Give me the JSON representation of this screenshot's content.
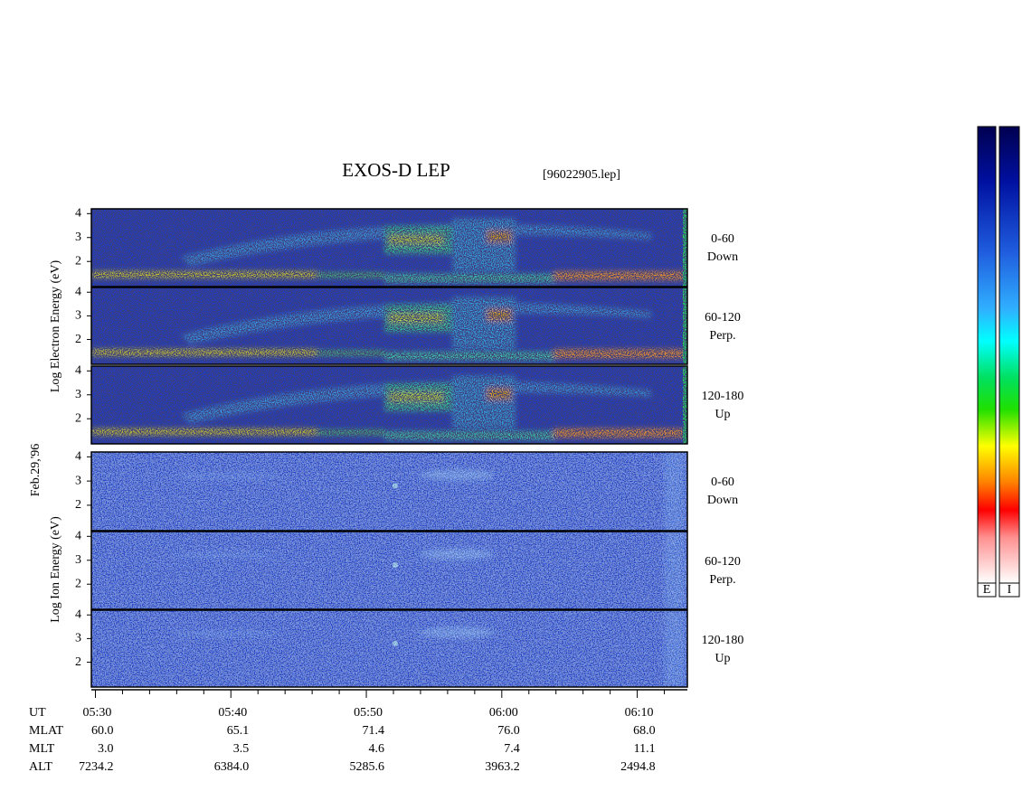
{
  "chart_data": {
    "type": "spectrogram",
    "title": "EXOS-D LEP",
    "file_label": "[96022905.lep]",
    "date_label": "Feb.29,'96",
    "groups": [
      {
        "species": "electron",
        "y_label": "Log Electron Energy (eV)",
        "panels": [
          {
            "label": "0-60",
            "sublabel": "Down"
          },
          {
            "label": "60-120",
            "sublabel": "Perp."
          },
          {
            "label": "120-180",
            "sublabel": "Up"
          }
        ]
      },
      {
        "species": "ion",
        "y_label": "Log Ion Energy (eV)",
        "panels": [
          {
            "label": "0-60",
            "sublabel": "Down"
          },
          {
            "label": "60-120",
            "sublabel": "Perp."
          },
          {
            "label": "120-180",
            "sublabel": "Up"
          }
        ]
      }
    ],
    "ylim": [
      0.95,
      4.2
    ],
    "yticks": [
      2,
      3,
      4
    ],
    "xlim": [
      329.7,
      373.7
    ],
    "xticks": [
      {
        "value": 330,
        "label": "05:30"
      },
      {
        "value": 340,
        "label": "05:40"
      },
      {
        "value": 350,
        "label": "05:50"
      },
      {
        "value": 360,
        "label": "06:00"
      },
      {
        "value": 370,
        "label": "06:10"
      }
    ],
    "xminor_ticks": [
      332,
      334,
      336,
      338,
      342,
      344,
      346,
      348,
      352,
      354,
      356,
      358,
      362,
      364,
      366,
      368,
      372
    ],
    "orbit_table": {
      "row_labels": [
        "UT",
        "MLAT",
        "MLT",
        "ALT"
      ],
      "rows": [
        [
          "60.0",
          "65.1",
          "71.4",
          "76.0",
          "68.0"
        ],
        [
          "3.0",
          "3.5",
          "4.6",
          "7.4",
          "11.1"
        ],
        [
          "7234.2",
          "6384.0",
          "5285.6",
          "3963.2",
          "2494.8"
        ]
      ]
    },
    "colorbar_labels": [
      "E",
      "I"
    ]
  }
}
